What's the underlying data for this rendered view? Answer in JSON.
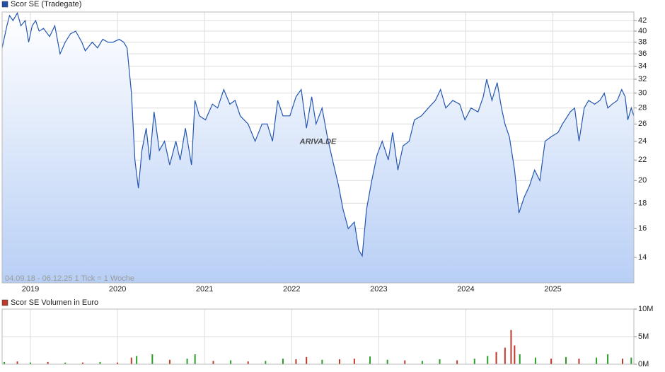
{
  "chart_data": [
    {
      "type": "line",
      "title": "Scor SE (Tradegate)",
      "annotation": "04.09.18 - 06.12.25   1 Tick = 1 Woche",
      "watermark": "ARIVA.DE",
      "legend_color": "#1f4fa6",
      "color": "#2456b0",
      "log_scale": true,
      "grid": true,
      "x": [
        2018.675,
        2018.73,
        2018.76,
        2018.8,
        2018.85,
        2018.89,
        2018.94,
        2018.98,
        2019.02,
        2019.06,
        2019.1,
        2019.15,
        2019.22,
        2019.28,
        2019.34,
        2019.4,
        2019.46,
        2019.52,
        2019.59,
        2019.63,
        2019.71,
        2019.77,
        2019.83,
        2019.89,
        2019.95,
        2020.02,
        2020.07,
        2020.11,
        2020.16,
        2020.2,
        2020.24,
        2020.28,
        2020.33,
        2020.37,
        2020.42,
        2020.48,
        2020.54,
        2020.6,
        2020.67,
        2020.72,
        2020.78,
        2020.85,
        2020.89,
        2020.94,
        2021.01,
        2021.09,
        2021.15,
        2021.22,
        2021.29,
        2021.35,
        2021.41,
        2021.5,
        2021.58,
        2021.66,
        2021.72,
        2021.78,
        2021.84,
        2021.9,
        2021.98,
        2022.05,
        2022.11,
        2022.17,
        2022.23,
        2022.28,
        2022.35,
        2022.41,
        2022.47,
        2022.54,
        2022.59,
        2022.65,
        2022.72,
        2022.77,
        2022.81,
        2022.86,
        2022.92,
        2022.98,
        2023.04,
        2023.11,
        2023.16,
        2023.22,
        2023.28,
        2023.35,
        2023.41,
        2023.49,
        2023.57,
        2023.65,
        2023.71,
        2023.77,
        2023.85,
        2023.93,
        2023.99,
        2024.06,
        2024.14,
        2024.2,
        2024.24,
        2024.3,
        2024.36,
        2024.41,
        2024.45,
        2024.5,
        2024.56,
        2024.61,
        2024.67,
        2024.73,
        2024.79,
        2024.85,
        2024.91,
        2024.98,
        2025.06,
        2025.11,
        2025.2,
        2025.25,
        2025.3,
        2025.36,
        2025.41,
        2025.48,
        2025.54,
        2025.59,
        2025.63,
        2025.68,
        2025.74,
        2025.79,
        2025.83,
        2025.86,
        2025.9,
        2025.93
      ],
      "values": [
        37,
        41,
        43,
        42,
        43.5,
        41,
        42,
        38,
        41,
        42,
        40,
        40.5,
        39,
        41,
        36,
        38,
        39.5,
        40,
        38,
        36.5,
        38,
        37,
        38.5,
        38,
        38,
        38.5,
        38,
        37,
        30,
        22,
        19.3,
        23,
        25.5,
        22,
        27.5,
        23,
        24,
        21.5,
        24,
        22,
        25.5,
        21.5,
        29,
        27,
        26.5,
        28.5,
        28,
        30.5,
        28.5,
        29,
        27,
        26,
        24,
        26,
        26,
        24,
        29,
        27,
        27,
        29.5,
        30.5,
        25.5,
        29.5,
        26,
        28,
        24.5,
        22,
        19.5,
        17.5,
        16,
        16.5,
        14.5,
        14.1,
        17.5,
        20,
        22.5,
        24,
        22,
        25,
        21,
        23.5,
        24,
        26.5,
        27,
        28,
        29,
        30.5,
        28,
        29,
        28.5,
        26.5,
        28,
        27.5,
        29.5,
        32,
        29,
        31.5,
        28,
        26,
        24.5,
        21,
        17.2,
        18.5,
        19.5,
        21,
        20,
        24,
        24.5,
        25,
        26,
        27.5,
        28,
        24,
        28,
        29,
        28.5,
        29,
        30,
        28,
        28.5,
        29,
        30.5,
        29.5,
        26.5,
        28,
        27
      ],
      "xlim": [
        2018.675,
        2025.93
      ],
      "xticks": [
        2019,
        2020,
        2021,
        2022,
        2023,
        2024,
        2025
      ],
      "ylim": [
        12.44,
        43.7
      ],
      "yticks": [
        14,
        16,
        18,
        20,
        22,
        24,
        26,
        28,
        30,
        32,
        34,
        36,
        38,
        40,
        42
      ]
    },
    {
      "type": "bar",
      "title": "Scor SE Volumen in Euro",
      "legend_color": "#c0392b",
      "grid": true,
      "x": [
        2018.7,
        2018.85,
        2019.0,
        2019.2,
        2019.4,
        2019.6,
        2019.8,
        2020.0,
        2020.16,
        2020.22,
        2020.4,
        2020.6,
        2020.8,
        2020.89,
        2021.1,
        2021.3,
        2021.5,
        2021.7,
        2021.9,
        2022.05,
        2022.17,
        2022.35,
        2022.55,
        2022.72,
        2022.9,
        2023.1,
        2023.3,
        2023.5,
        2023.7,
        2023.9,
        2024.1,
        2024.25,
        2024.35,
        2024.45,
        2024.52,
        2024.56,
        2024.62,
        2024.8,
        2024.98,
        2025.15,
        2025.3,
        2025.5,
        2025.63,
        2025.8,
        2025.9
      ],
      "values": [
        400000,
        500000,
        300000,
        400000,
        300000,
        300000,
        400000,
        300000,
        1200000,
        1500000,
        1800000,
        800000,
        1000000,
        1800000,
        600000,
        700000,
        500000,
        600000,
        1000000,
        900000,
        1300000,
        800000,
        900000,
        1000000,
        1400000,
        800000,
        700000,
        600000,
        900000,
        700000,
        1000000,
        1500000,
        2200000,
        3000000,
        6200000,
        3400000,
        1800000,
        1200000,
        1000000,
        1300000,
        1000000,
        1200000,
        1800000,
        1000000,
        1200000
      ],
      "colors": [
        "#2a9d2a",
        "#c0392b",
        "#2a9d2a",
        "#c0392b",
        "#2a9d2a",
        "#c0392b",
        "#2a9d2a",
        "#c0392b",
        "#c0392b",
        "#2a9d2a",
        "#2a9d2a",
        "#c0392b",
        "#2a9d2a",
        "#2a9d2a",
        "#c0392b",
        "#2a9d2a",
        "#c0392b",
        "#2a9d2a",
        "#2a9d2a",
        "#c0392b",
        "#c0392b",
        "#2a9d2a",
        "#c0392b",
        "#c0392b",
        "#2a9d2a",
        "#2a9d2a",
        "#c0392b",
        "#2a9d2a",
        "#2a9d2a",
        "#c0392b",
        "#2a9d2a",
        "#2a9d2a",
        "#c0392b",
        "#c0392b",
        "#c0392b",
        "#c0392b",
        "#2a9d2a",
        "#2a9d2a",
        "#c0392b",
        "#2a9d2a",
        "#c0392b",
        "#2a9d2a",
        "#2a9d2a",
        "#c0392b",
        "#2a9d2a"
      ],
      "xlim": [
        2018.675,
        2025.93
      ],
      "xticks": [
        2019,
        2020,
        2021,
        2022,
        2023,
        2024,
        2025
      ],
      "ylim": [
        0,
        10000000
      ],
      "yticks": [
        {
          "value": 0,
          "label": "0M"
        },
        {
          "value": 5000000,
          "label": "5M"
        },
        {
          "value": 10000000,
          "label": "10M"
        }
      ]
    }
  ]
}
